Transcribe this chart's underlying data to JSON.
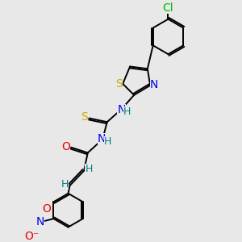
{
  "bg_color": "#e8e8e8",
  "atoms": {
    "Cl": {
      "color": "#00bb00",
      "size": 10
    },
    "S": {
      "color": "#ccaa00",
      "size": 10
    },
    "N": {
      "color": "#0000ee",
      "size": 10
    },
    "O": {
      "color": "#ee0000",
      "size": 10
    },
    "H": {
      "color": "#008080",
      "size": 9
    },
    "C": {
      "color": "#000000",
      "size": 0
    }
  },
  "bond_color": "#000000",
  "bond_width": 1.4
}
